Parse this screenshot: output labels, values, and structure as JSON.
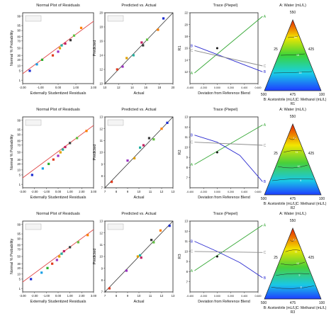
{
  "panel_titles": [
    "Normal Plot of Residuals",
    "Predicted vs. Actual",
    "Trace (Piepel)"
  ],
  "axis_labels": {
    "normal_x": "Externally Studentized Residuals",
    "normal_y": "Normal % Probability",
    "pva_x": "Actual",
    "pva_y": "Predicted",
    "trace_x": "Deviation from Reference Blend",
    "ternary_top": "A: Water (mL/L)",
    "ternary_left": "B: Acetonitrile (mL/L)",
    "ternary_right": "C: Methanol (mL/L)"
  },
  "colors": {
    "ref_line_normal": "#e04848",
    "ref_line_pva": "#333333",
    "trace_A": "#35a835",
    "trace_B": "#2b2bd0",
    "trace_C": "#8a8a8a"
  },
  "chart_data": [
    {
      "type": "scatter",
      "name": "normal_R1",
      "title": "Normal Plot of Residuals",
      "xlabel": "Externally Studentized Residuals",
      "ylabel": "Normal % Probability",
      "xlim": [
        -2,
        2
      ],
      "xticks": [
        "-2.00",
        "-1.00",
        "0.00",
        "1.00",
        "2.00"
      ],
      "yticks": [
        "1",
        "5",
        "10",
        "20",
        "30",
        "50",
        "70",
        "80",
        "90",
        "95",
        "99"
      ],
      "points": [
        [
          -1.6,
          5
        ],
        [
          -1.2,
          12
        ],
        [
          -0.9,
          20
        ],
        [
          -0.3,
          30
        ],
        [
          0.0,
          40
        ],
        [
          0.1,
          50
        ],
        [
          0.2,
          58
        ],
        [
          0.4,
          63
        ],
        [
          0.7,
          72
        ],
        [
          0.9,
          82
        ],
        [
          1.3,
          93
        ]
      ]
    },
    {
      "type": "scatter",
      "name": "pva_R1",
      "title": "Predicted vs. Actual",
      "xlabel": "Actual",
      "ylabel": "Predicted",
      "xlim": [
        10,
        20
      ],
      "ylim": [
        10,
        20
      ],
      "xticks": [
        "10",
        "12",
        "14",
        "16",
        "18",
        "20"
      ],
      "yticks": [
        "10",
        "12",
        "14",
        "16",
        "18",
        "20"
      ],
      "points": [
        [
          11.8,
          12.0
        ],
        [
          12.6,
          12.4
        ],
        [
          13.2,
          13.6
        ],
        [
          14.2,
          14.0
        ],
        [
          15.4,
          15.8
        ],
        [
          15.6,
          15.4
        ],
        [
          16.2,
          16.2
        ],
        [
          17.8,
          17.6
        ],
        [
          18.6,
          19.2
        ]
      ]
    },
    {
      "type": "line",
      "name": "trace_R1",
      "title": "Trace (Piepel)",
      "xlabel": "Deviation from Reference Blend",
      "ylabel": "R1",
      "xlim": [
        -0.4,
        0.6
      ],
      "ylim": [
        10,
        22
      ],
      "xticks": [
        "-0.400",
        "-0.200",
        "0.000",
        "0.200",
        "0.400",
        "0.600"
      ],
      "yticks": [
        "12",
        "14",
        "16",
        "18",
        "20",
        "22"
      ],
      "series": [
        {
          "name": "A",
          "x": [
            -0.333,
            0.667
          ],
          "y": [
            11.8,
            21.4
          ]
        },
        {
          "name": "B",
          "x": [
            -0.333,
            0.667
          ],
          "y": [
            16.4,
            12.0
          ]
        },
        {
          "name": "C",
          "x": [
            -0.333,
            0.667
          ],
          "y": [
            15.6,
            13.0
          ]
        }
      ]
    },
    {
      "type": "heatmap",
      "name": "ternary_R1",
      "subtitle": "R1",
      "top_max": "550",
      "bottom_left": "500",
      "bottom_mid": "475",
      "bottom_right": "100",
      "mid_left": "25",
      "mid_right": "425",
      "contour_labels": [
        "18",
        "16",
        "14"
      ]
    },
    {
      "type": "scatter",
      "name": "normal_R2",
      "title": "Normal Plot of Residuals",
      "xlabel": "Externally Studentized Residuals",
      "ylabel": "Normal % Probability",
      "xlim": [
        -3,
        3
      ],
      "xticks": [
        "-3.00",
        "-2.00",
        "-1.00",
        "0.00",
        "1.00",
        "2.00",
        "3.00"
      ],
      "yticks": [
        "1",
        "5",
        "10",
        "20",
        "30",
        "50",
        "70",
        "80",
        "90",
        "95",
        "99"
      ],
      "points": [
        [
          -2.2,
          5
        ],
        [
          -1.3,
          12
        ],
        [
          -0.8,
          20
        ],
        [
          -0.4,
          30
        ],
        [
          0.0,
          40
        ],
        [
          0.2,
          50
        ],
        [
          0.4,
          58
        ],
        [
          0.6,
          65
        ],
        [
          1.0,
          75
        ],
        [
          1.6,
          85
        ],
        [
          2.4,
          94
        ]
      ]
    },
    {
      "type": "scatter",
      "name": "pva_R2",
      "title": "Predicted vs. Actual",
      "xlabel": "Actual",
      "ylabel": "Predicted",
      "xlim": [
        7,
        13
      ],
      "ylim": [
        7,
        13
      ],
      "xticks": [
        "7",
        "8",
        "9",
        "10",
        "11",
        "12",
        "13"
      ],
      "yticks": [
        "7",
        "8",
        "9",
        "10",
        "11",
        "12",
        "13"
      ],
      "points": [
        [
          7.6,
          7.5
        ],
        [
          9.0,
          9.3
        ],
        [
          9.6,
          9.5
        ],
        [
          10.1,
          10.4
        ],
        [
          10.4,
          10.6
        ],
        [
          10.9,
          11.2
        ],
        [
          11.3,
          11.1
        ],
        [
          12.0,
          12.0
        ],
        [
          12.5,
          12.5
        ]
      ]
    },
    {
      "type": "line",
      "name": "trace_R2",
      "title": "Trace (Piepel)",
      "xlabel": "Deviation from Reference Blend",
      "ylabel": "R2",
      "xlim": [
        -0.4,
        0.6
      ],
      "ylim": [
        6,
        13
      ],
      "xticks": [
        "-0.400",
        "-0.200",
        "0.000",
        "0.200",
        "0.400",
        "0.600"
      ],
      "yticks": [
        "7",
        "8",
        "9",
        "10",
        "11",
        "12",
        "13"
      ],
      "series": [
        {
          "name": "A",
          "x": [
            -0.333,
            0.667
          ],
          "y": [
            8.3,
            12.2
          ]
        },
        {
          "name": "B",
          "x": [
            -0.333,
            0.0,
            0.333,
            0.667
          ],
          "y": [
            11.2,
            10.5,
            9.2,
            6.6
          ]
        },
        {
          "name": "C",
          "x": [
            -0.333,
            0.667
          ],
          "y": [
            10.5,
            10.2
          ]
        }
      ]
    },
    {
      "type": "heatmap",
      "name": "ternary_R2",
      "subtitle": "R2",
      "top_max": "550",
      "bottom_left": "500",
      "bottom_mid": "475",
      "bottom_right": "100",
      "mid_left": "25",
      "mid_right": "425",
      "contour_labels": [
        "12",
        "11",
        "10",
        "9"
      ]
    },
    {
      "type": "scatter",
      "name": "normal_R3",
      "title": "Normal Plot of Residuals",
      "xlabel": "Externally Studentized Residuals",
      "ylabel": "Normal % Probability",
      "xlim": [
        -3,
        3
      ],
      "xticks": [
        "-3.00",
        "-2.00",
        "-1.00",
        "0.00",
        "1.00",
        "2.00",
        "3.00"
      ],
      "yticks": [
        "1",
        "5",
        "10",
        "20",
        "30",
        "50",
        "70",
        "80",
        "90",
        "95",
        "99"
      ],
      "points": [
        [
          -2.3,
          5
        ],
        [
          -1.4,
          12
        ],
        [
          -0.9,
          20
        ],
        [
          -0.5,
          30
        ],
        [
          -0.1,
          40
        ],
        [
          0.1,
          50
        ],
        [
          0.3,
          58
        ],
        [
          0.5,
          65
        ],
        [
          1.0,
          75
        ],
        [
          1.7,
          85
        ],
        [
          2.5,
          94
        ]
      ]
    },
    {
      "type": "scatter",
      "name": "pva_R3",
      "title": "Predicted vs. Actual",
      "xlabel": "Actual",
      "ylabel": "Predicted",
      "xlim": [
        7,
        13
      ],
      "ylim": [
        7,
        13
      ],
      "xticks": [
        "7",
        "8",
        "9",
        "10",
        "11",
        "12",
        "13"
      ],
      "yticks": [
        "7",
        "8",
        "9",
        "10",
        "11",
        "12",
        "13"
      ],
      "points": [
        [
          7.4,
          7.3
        ],
        [
          8.9,
          8.8
        ],
        [
          9.9,
          10.0
        ],
        [
          10.1,
          10.1
        ],
        [
          10.2,
          9.9
        ],
        [
          11.1,
          11.4
        ],
        [
          11.3,
          11.2
        ],
        [
          11.9,
          12.2
        ],
        [
          12.7,
          12.6
        ]
      ]
    },
    {
      "type": "line",
      "name": "trace_R3",
      "title": "Trace (Piepel)",
      "xlabel": "Deviation from Reference Blend",
      "ylabel": "R3",
      "xlim": [
        -0.4,
        0.6
      ],
      "ylim": [
        6,
        13
      ],
      "xticks": [
        "-0.400",
        "-0.200",
        "0.000",
        "0.200",
        "0.400",
        "0.600"
      ],
      "yticks": [
        "7",
        "8",
        "9",
        "10",
        "11",
        "12",
        "13"
      ],
      "series": [
        {
          "name": "A",
          "x": [
            -0.333,
            0.667
          ],
          "y": [
            8.1,
            12.6
          ]
        },
        {
          "name": "B",
          "x": [
            -0.333,
            0.0,
            0.333,
            0.667
          ],
          "y": [
            11.0,
            10.0,
            8.9,
            7.4
          ]
        },
        {
          "name": "C",
          "x": [
            -0.333,
            0.667
          ],
          "y": [
            10.0,
            9.9
          ]
        }
      ]
    },
    {
      "type": "heatmap",
      "name": "ternary_R3",
      "subtitle": "R3",
      "top_max": "550",
      "bottom_left": "500",
      "bottom_mid": "475",
      "bottom_right": "100",
      "mid_left": "25",
      "mid_right": "425",
      "contour_labels": [
        "12",
        "11",
        "10",
        "9",
        "8"
      ]
    }
  ]
}
